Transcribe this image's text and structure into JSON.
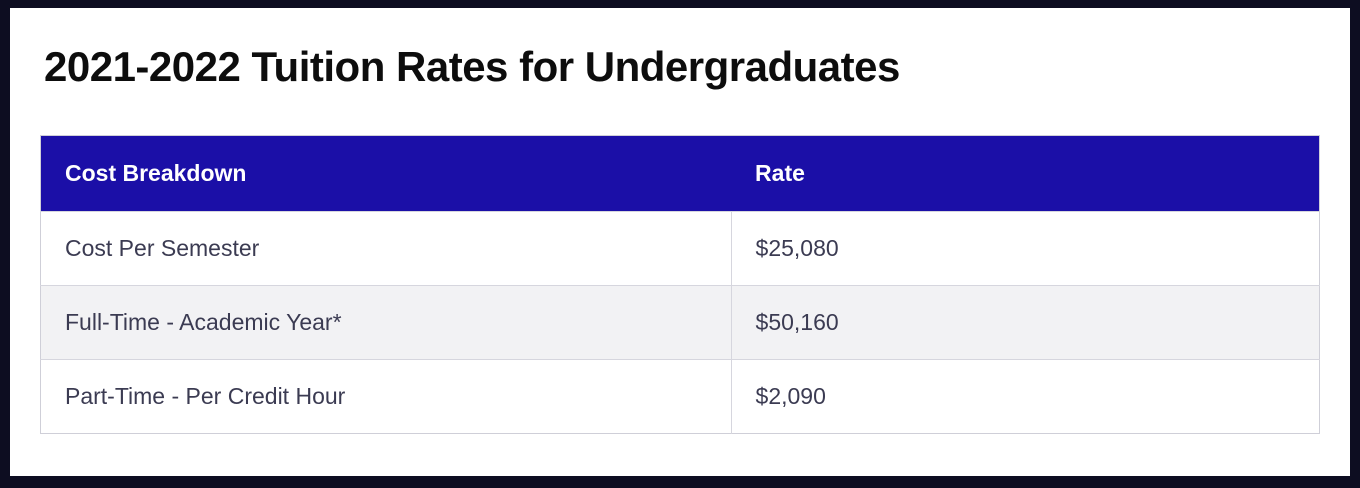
{
  "page": {
    "title": "2021-2022 Tuition Rates for Undergraduates"
  },
  "table": {
    "headers": [
      "Cost Breakdown",
      "Rate"
    ],
    "rows": [
      {
        "label": "Cost Per Semester",
        "rate": "$25,080"
      },
      {
        "label": "Full-Time - Academic Year*",
        "rate": "$50,160"
      },
      {
        "label": "Part-Time - Per Credit Hour",
        "rate": "$2,090"
      }
    ]
  },
  "colors": {
    "header_background": "#1b0fa7",
    "header_text": "#ffffff",
    "alt_row_background": "#f2f2f4",
    "row_text": "#3b3b52",
    "border": "#d6d6de",
    "frame": "#0d0d21"
  }
}
